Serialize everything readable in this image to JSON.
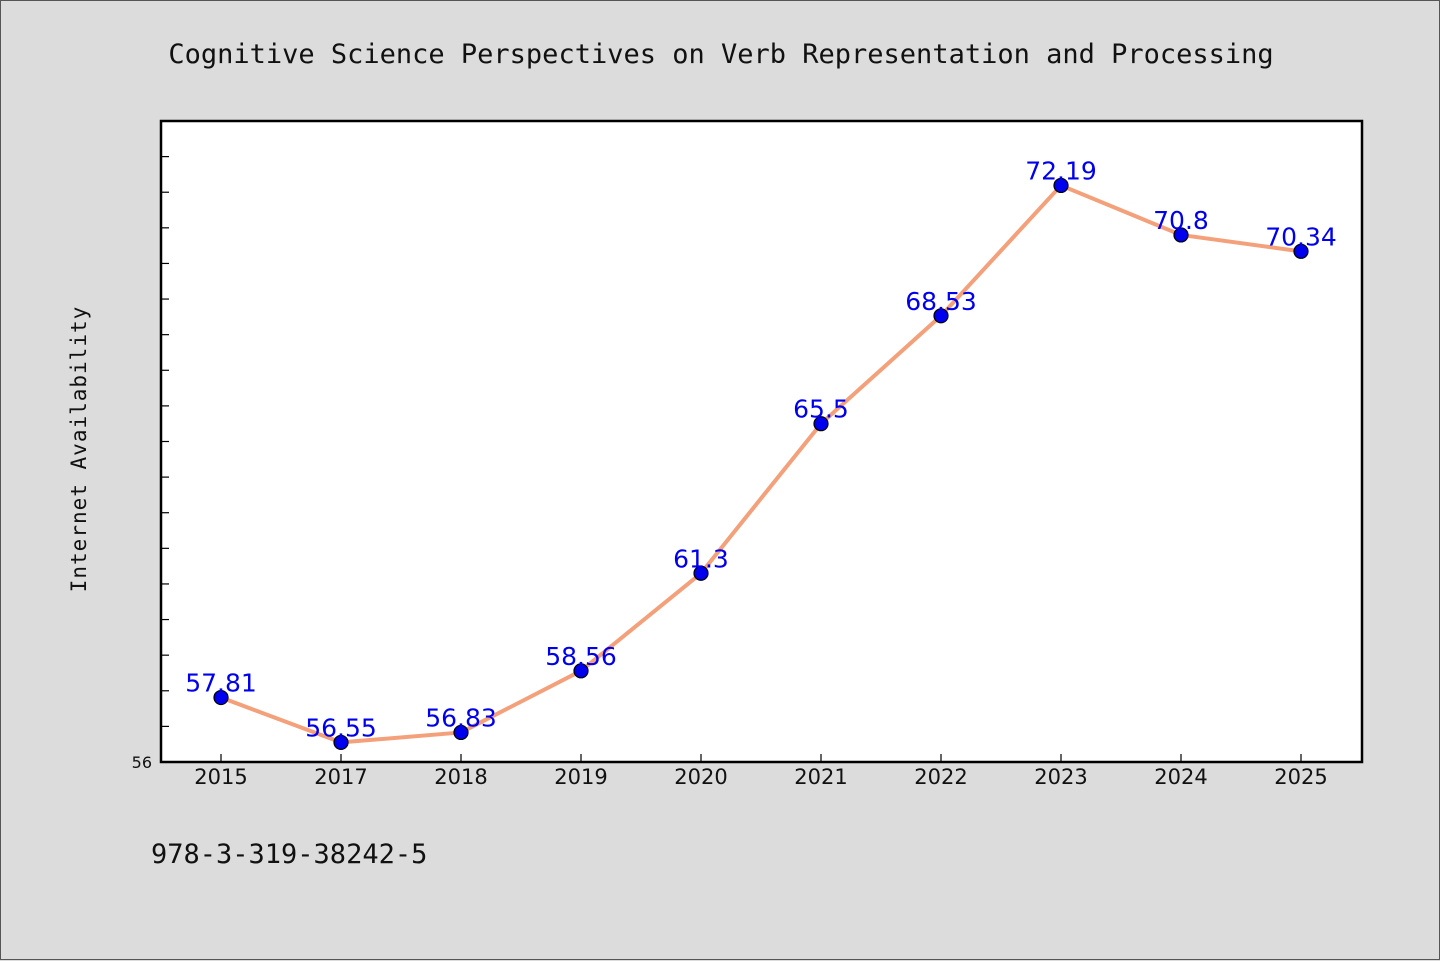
{
  "chart_data": {
    "type": "line",
    "title": "Cognitive Science Perspectives on Verb Representation and Processing",
    "xlabel": "",
    "ylabel": "Internet Availability",
    "categories": [
      "2015",
      "2017",
      "2018",
      "2019",
      "2020",
      "2021",
      "2022",
      "2023",
      "2024",
      "2025"
    ],
    "series": [
      {
        "values": [
          57.81,
          56.55,
          56.83,
          58.56,
          61.3,
          65.5,
          68.53,
          72.19,
          70.8,
          70.34
        ],
        "labels": [
          "57.81",
          "56.55",
          "56.83",
          "58.56",
          "61.3",
          "65.5",
          "68.53",
          "72.19",
          "70.8",
          "70.34"
        ]
      }
    ],
    "ylim": [
      56,
      74
    ],
    "ytick_labels": [
      "56"
    ],
    "grid": false,
    "colors": {
      "line": "#f4a07a",
      "marker": "#0000ee",
      "label": "#0000ee"
    }
  },
  "footer": {
    "isbn": "978-3-319-38242-5"
  }
}
